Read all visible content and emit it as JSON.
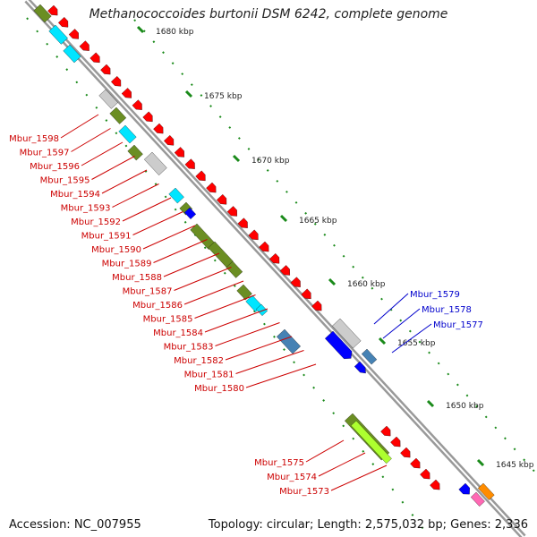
{
  "title": "Methanococcoides burtonii DSM 6242, complete genome",
  "accession": "Accession: NC_007955",
  "topology": "Topology: circular; Length: 2,575,032 bp; Genes: 2,336",
  "kbp_ticks": [
    "1680 kbp",
    "1675 kbp",
    "1670 kbp",
    "1665 kbp",
    "1660 kbp",
    "1655 kbp",
    "1650 kbp",
    "1645 kbp"
  ],
  "gene_labels_left": [
    "Mbur_1598",
    "Mbur_1597",
    "Mbur_1596",
    "Mbur_1595",
    "Mbur_1594",
    "Mbur_1593",
    "Mbur_1592",
    "Mbur_1591",
    "Mbur_1590",
    "Mbur_1589",
    "Mbur_1588",
    "Mbur_1587",
    "Mbur_1586",
    "Mbur_1585",
    "Mbur_1584",
    "Mbur_1583",
    "Mbur_1582",
    "Mbur_1581",
    "Mbur_1580"
  ],
  "gene_labels_right": [
    "Mbur_1579",
    "Mbur_1578",
    "Mbur_1577"
  ],
  "gene_labels_bottom": [
    "Mbur_1575",
    "Mbur_1574",
    "Mbur_1573"
  ],
  "colors": {
    "cds": "#ff0000",
    "label_red": "#cc0000",
    "label_blue": "#0000cc",
    "backbone": "#888888",
    "tick": "#1a8a1a",
    "olive": "#6b8e23",
    "cyan": "#00e5ff",
    "grey": "#cccccc",
    "blue": "#0000ff",
    "steelblue": "#4682b4",
    "lime": "#adff2f"
  }
}
